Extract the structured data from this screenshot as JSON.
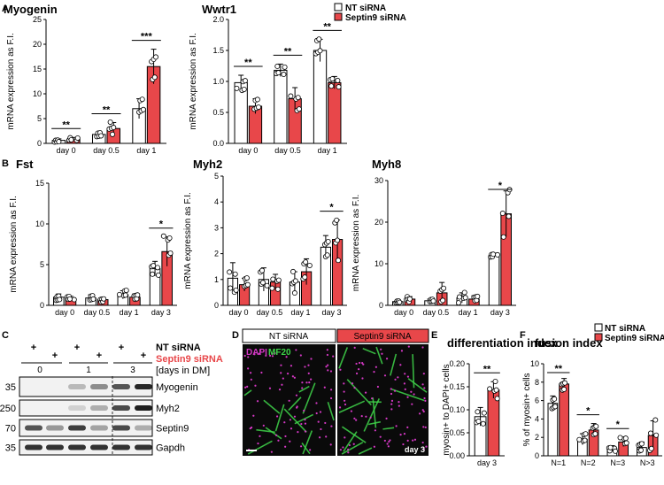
{
  "legend": {
    "items": [
      {
        "label": "NT siRNA",
        "color": "#ffffff"
      },
      {
        "label": "Septin9 siRNA",
        "color": "#e8474a"
      }
    ]
  },
  "panel_letters": [
    "A",
    "B",
    "C",
    "D",
    "E",
    "F"
  ],
  "chart_data": [
    {
      "type": "bar",
      "title": "Myogenin",
      "ylabel": "mRNA expression as F.I.",
      "categories": [
        "day 0",
        "day 0.5",
        "day 1"
      ],
      "ylim": [
        0,
        25
      ],
      "yticks": [
        0,
        5,
        10,
        15,
        20,
        25
      ],
      "series": [
        {
          "name": "NT siRNA",
          "values": [
            0.6,
            1.8,
            7.0
          ],
          "err": [
            0.3,
            0.6,
            2.0
          ]
        },
        {
          "name": "Septin9 siRNA",
          "values": [
            0.8,
            3.0,
            15.5
          ],
          "err": [
            0.4,
            1.2,
            3.5
          ]
        }
      ],
      "sig": [
        "**",
        "**",
        "***"
      ]
    },
    {
      "type": "bar",
      "title": "Wwtr1",
      "ylabel": "mRNA expression as F.I.",
      "categories": [
        "day 0",
        "day 0.5",
        "day 1"
      ],
      "ylim": [
        0,
        2.0
      ],
      "yticks": [
        0,
        0.5,
        1.0,
        1.5,
        2.0
      ],
      "series": [
        {
          "name": "NT siRNA",
          "values": [
            0.98,
            1.18,
            1.5
          ],
          "err": [
            0.12,
            0.1,
            0.18
          ]
        },
        {
          "name": "Septin9 siRNA",
          "values": [
            0.6,
            0.72,
            0.98
          ],
          "err": [
            0.12,
            0.18,
            0.1
          ]
        }
      ],
      "sig": [
        "**",
        "**",
        "**"
      ]
    },
    {
      "type": "bar",
      "title": "Fst",
      "ylabel": "mRNA expression as F.I.",
      "categories": [
        "day 0",
        "day 0.5",
        "day 1",
        "day 3"
      ],
      "ylim": [
        0,
        15
      ],
      "yticks": [
        0,
        5,
        10,
        15
      ],
      "series": [
        {
          "name": "NT siRNA",
          "values": [
            1.0,
            0.9,
            1.3,
            4.5
          ],
          "err": [
            0.4,
            0.4,
            0.5,
            0.9
          ]
        },
        {
          "name": "Septin9 siRNA",
          "values": [
            0.8,
            0.7,
            1.0,
            6.6
          ],
          "err": [
            0.3,
            0.3,
            0.4,
            1.8
          ]
        }
      ],
      "sig": [
        "",
        "",
        "",
        "*"
      ]
    },
    {
      "type": "bar",
      "title": "Myh2",
      "ylabel": "mRNA expression as F.I.",
      "categories": [
        "day 0",
        "day 0.5",
        "day 1",
        "day 3"
      ],
      "ylim": [
        0,
        5
      ],
      "yticks": [
        0,
        1,
        2,
        3,
        4,
        5
      ],
      "series": [
        {
          "name": "NT siRNA",
          "values": [
            1.05,
            1.0,
            0.9,
            2.25
          ],
          "err": [
            0.6,
            0.45,
            0.4,
            0.45
          ]
        },
        {
          "name": "Septin9 siRNA",
          "values": [
            0.8,
            0.9,
            1.3,
            2.55
          ],
          "err": [
            0.25,
            0.3,
            0.5,
            0.75
          ]
        }
      ],
      "sig": [
        "",
        "",
        "",
        "*"
      ]
    },
    {
      "type": "bar",
      "title": "Myh8",
      "ylabel": "mRNA expression as F.I.",
      "categories": [
        "day 0",
        "day 0.5",
        "day 1",
        "day 3"
      ],
      "ylim": [
        0,
        30
      ],
      "yticks": [
        0,
        10,
        20,
        30
      ],
      "series": [
        {
          "name": "NT siRNA",
          "values": [
            0.9,
            1.1,
            1.8,
            12.0
          ],
          "err": [
            0.3,
            0.4,
            1.2,
            0.5
          ]
        },
        {
          "name": "Septin9 siRNA",
          "values": [
            1.5,
            3.0,
            1.5,
            22.0
          ],
          "err": [
            0.6,
            2.5,
            0.8,
            5.5
          ]
        }
      ],
      "sig": [
        "",
        "",
        "",
        "*"
      ]
    },
    {
      "type": "bar",
      "title": "differentiation index",
      "ylabel": "myosin+ to DAPI+ cells",
      "categories": [
        "day 3"
      ],
      "ylim": [
        0,
        0.2
      ],
      "yticks": [
        0.0,
        0.05,
        0.1,
        0.15,
        0.2
      ],
      "series": [
        {
          "name": "NT siRNA",
          "values": [
            0.085
          ],
          "err": [
            0.02
          ]
        },
        {
          "name": "Septin9 siRNA",
          "values": [
            0.143
          ],
          "err": [
            0.018
          ]
        }
      ],
      "sig": [
        "**"
      ]
    },
    {
      "type": "bar",
      "title": "fusion index",
      "ylabel": "% of myosin+ cells",
      "categories": [
        "N=1",
        "N=2",
        "N=3",
        "N>3"
      ],
      "ylim": [
        0,
        10
      ],
      "yticks": [
        0,
        2,
        4,
        6,
        8,
        10
      ],
      "series": [
        {
          "name": "NT siRNA",
          "values": [
            5.7,
            1.8,
            0.8,
            0.9
          ],
          "err": [
            0.8,
            0.6,
            0.3,
            0.6
          ]
        },
        {
          "name": "Septin9 siRNA",
          "values": [
            7.8,
            2.8,
            1.5,
            2.2
          ],
          "err": [
            0.6,
            0.7,
            0.5,
            1.6
          ]
        }
      ],
      "sig": [
        "**",
        "*",
        "*",
        ""
      ]
    }
  ],
  "western": {
    "letter": "C",
    "lane_marks": [
      "+",
      "+",
      "+",
      "+",
      "+",
      "+"
    ],
    "nt_label": "NT siRNA",
    "sep_label": "Septin9 siRNA",
    "days_label": "[days in DM]",
    "days": [
      "0",
      "1",
      "3"
    ],
    "blots": [
      {
        "marker": "35",
        "protein": "Myogenin"
      },
      {
        "marker": "250",
        "protein": "Myh2"
      },
      {
        "marker": "70",
        "protein": "Septin9"
      },
      {
        "marker": "35",
        "protein": "Gapdh"
      }
    ]
  },
  "micro": {
    "letter": "D",
    "left_header": "NT siRNA",
    "right_header": "Septin9 siRNA",
    "stain_a": "DAPI",
    "stain_b": "MF20",
    "day": "day 3",
    "colors": {
      "nuclei": "#d438c4",
      "fibers": "#3fd54a",
      "bg": "#0a0a0a",
      "red": "#e8474a"
    }
  },
  "colors": {
    "nt": "#ffffff",
    "sep": "#e8474a",
    "axis": "#000000"
  }
}
